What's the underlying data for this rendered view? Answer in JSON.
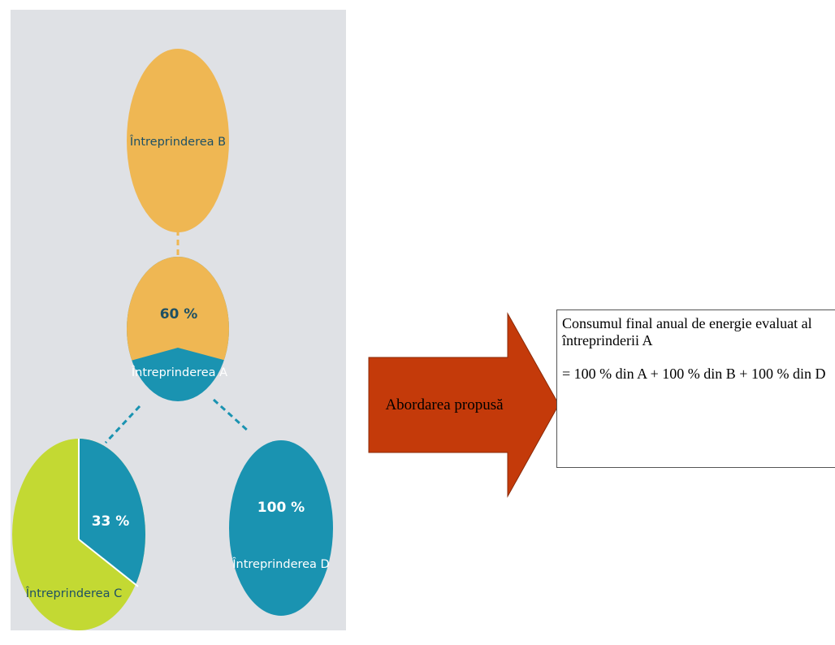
{
  "diagram": {
    "colors": {
      "panel_bg": "#dfe1e5",
      "orange": "#efb753",
      "teal": "#1a93b1",
      "green": "#c3d933",
      "label_dark": "#1e5064",
      "label_white": "#ffffff",
      "arrow_red": "#c43a0a"
    },
    "nodes": {
      "b": {
        "label": "Întreprinderea B"
      },
      "a": {
        "label": "Întreprinderea A",
        "share": "60 %"
      },
      "c": {
        "label": "Întreprinderea C",
        "share": "33 %"
      },
      "d": {
        "label": "Întreprinderea D",
        "share": "100 %"
      }
    }
  },
  "arrow": {
    "label": "Abordarea propusă"
  },
  "result_box": {
    "line1": "Consumul final anual de energie evaluat al",
    "line2": "întreprinderii A",
    "formula": "= 100 % din A + 100 % din B + 100 % din D"
  }
}
